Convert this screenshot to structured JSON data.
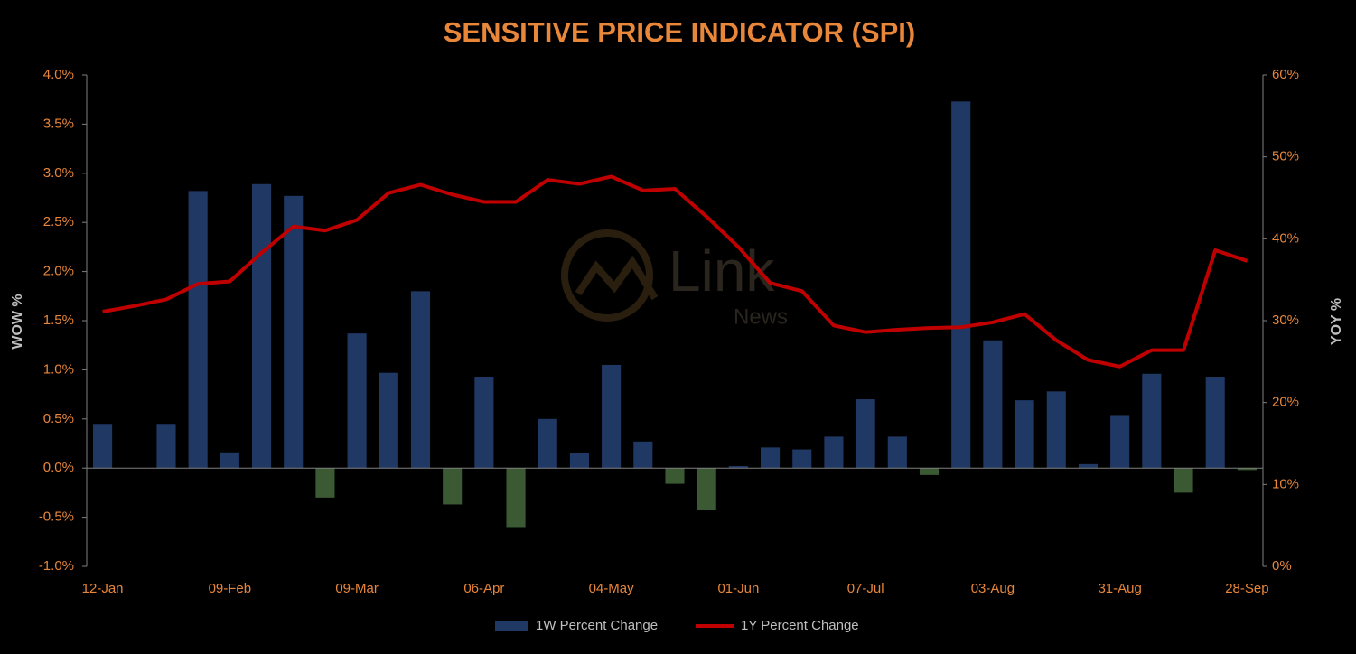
{
  "chart_data": {
    "type": "bar_line",
    "title": "SENSITIVE PRICE INDICATOR (SPI)",
    "y_label": "WOW %",
    "y2_label": "YOY %",
    "watermark": [
      "Link",
      "News"
    ],
    "categories": [
      "12-Jan",
      null,
      null,
      null,
      "09-Feb",
      null,
      null,
      null,
      "09-Mar",
      null,
      null,
      null,
      "06-Apr",
      null,
      null,
      null,
      "04-May",
      null,
      null,
      null,
      "01-Jun",
      null,
      null,
      null,
      "07-Jul",
      null,
      null,
      null,
      "03-Aug",
      null,
      null,
      null,
      "31-Aug",
      null,
      null,
      null,
      "28-Sep"
    ],
    "series": [
      {
        "name": "1W Percent Change",
        "type": "bar",
        "color": "#203864",
        "negative_color": "#3b5a34",
        "values": [
          0.45,
          0,
          0.45,
          2.82,
          0.16,
          2.89,
          2.77,
          -0.3,
          1.37,
          0.97,
          1.8,
          -0.37,
          0.93,
          -0.6,
          0.5,
          0.15,
          1.05,
          0.27,
          -0.16,
          -0.43,
          0.02,
          0.21,
          0.19,
          0.32,
          0.7,
          0.32,
          -0.07,
          3.73,
          1.3,
          0.69,
          0.78,
          0.04,
          0.54,
          0.96,
          -0.25,
          0.93,
          -0.02
        ]
      },
      {
        "name": "1Y Percent Change",
        "type": "line",
        "axis": "y2",
        "color": "#c00000",
        "values": [
          31.1,
          31.8,
          32.6,
          34.5,
          34.8,
          38.3,
          41.5,
          41.0,
          42.3,
          45.6,
          46.6,
          45.4,
          44.5,
          44.5,
          47.2,
          46.7,
          47.6,
          45.9,
          46.1,
          42.7,
          39.0,
          34.6,
          33.6,
          29.4,
          28.6,
          28.9,
          29.1,
          29.2,
          29.8,
          30.8,
          27.6,
          25.2,
          24.4,
          26.4,
          26.4,
          38.6,
          37.3
        ]
      }
    ],
    "ylim": [
      -1.0,
      4.0
    ],
    "yticks": [
      {
        "value": -1.0,
        "label": "-1.0%"
      },
      {
        "value": -0.5,
        "label": "-0.5%"
      },
      {
        "value": 0,
        "label": "0.0%"
      },
      {
        "value": 0.5,
        "label": "0.5%"
      },
      {
        "value": 1.0,
        "label": "1.0%"
      },
      {
        "value": 1.5,
        "label": "1.5%"
      },
      {
        "value": 2.0,
        "label": "2.0%"
      },
      {
        "value": 2.5,
        "label": "2.5%"
      },
      {
        "value": 3.0,
        "label": "3.0%"
      },
      {
        "value": 3.5,
        "label": "3.5%"
      },
      {
        "value": 4.0,
        "label": "4.0%"
      }
    ],
    "y2lim": [
      0,
      60
    ],
    "y2ticks": [
      {
        "value": 0,
        "label": "0%"
      },
      {
        "value": 10,
        "label": "10%"
      },
      {
        "value": 20,
        "label": "20%"
      },
      {
        "value": 30,
        "label": "30%"
      },
      {
        "value": 40,
        "label": "40%"
      },
      {
        "value": 50,
        "label": "50%"
      },
      {
        "value": 60,
        "label": "60%"
      }
    ],
    "grid": false,
    "legend": "bottom"
  }
}
